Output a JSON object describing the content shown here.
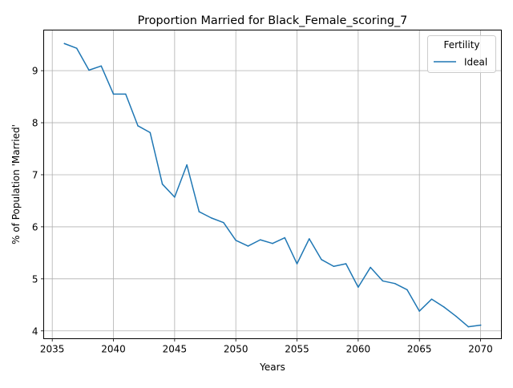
{
  "chart_data": {
    "type": "line",
    "title": "Proportion Married for Black_Female_scoring_7",
    "xlabel": "Years",
    "ylabel": "% of Population 'Married'",
    "xlim": [
      2034.3,
      2071.7
    ],
    "ylim": [
      3.85,
      9.78
    ],
    "xticks": [
      2035,
      2040,
      2045,
      2050,
      2055,
      2060,
      2065,
      2070
    ],
    "yticks": [
      4,
      5,
      6,
      7,
      8,
      9
    ],
    "grid": true,
    "legend": {
      "title": "Fertility",
      "position": "top-right"
    },
    "series": [
      {
        "name": "Ideal",
        "color": "#1f77b4",
        "x": [
          2036,
          2037,
          2038,
          2039,
          2040,
          2041,
          2042,
          2043,
          2044,
          2045,
          2046,
          2047,
          2048,
          2049,
          2050,
          2051,
          2052,
          2053,
          2054,
          2055,
          2056,
          2057,
          2058,
          2059,
          2060,
          2061,
          2062,
          2063,
          2064,
          2065,
          2066,
          2067,
          2068,
          2069,
          2070
        ],
        "y": [
          9.52,
          9.43,
          9.01,
          9.09,
          8.55,
          8.55,
          7.94,
          7.81,
          6.82,
          6.57,
          7.19,
          6.29,
          6.17,
          6.08,
          5.74,
          5.63,
          5.75,
          5.68,
          5.79,
          5.29,
          5.77,
          5.37,
          5.24,
          5.29,
          4.84,
          5.22,
          4.96,
          4.91,
          4.79,
          4.38,
          4.61,
          4.46,
          4.28,
          4.08,
          4.11
        ]
      }
    ]
  }
}
